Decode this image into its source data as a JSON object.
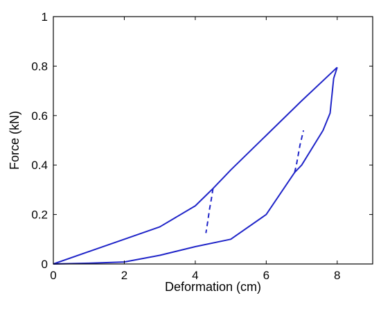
{
  "chart_data": {
    "type": "line",
    "title": "",
    "xlabel": "Deformation (cm)",
    "ylabel": "Force (kN)",
    "xlim": [
      0,
      9
    ],
    "ylim": [
      0,
      1
    ],
    "xticks": [
      0,
      2,
      4,
      6,
      8
    ],
    "yticks": [
      0,
      0.2,
      0.4,
      0.6,
      0.8,
      1
    ],
    "xtick_labels": [
      "0",
      "2",
      "4",
      "6",
      "8"
    ],
    "ytick_labels": [
      "0",
      "0.2",
      "0.4",
      "0.6",
      "0.8",
      "1"
    ],
    "grid": false,
    "line_color": "#1f24c8",
    "series": [
      {
        "style": "solid",
        "x": [
          0,
          2,
          3,
          4,
          4.5,
          5,
          6,
          7,
          8
        ],
        "y": [
          0,
          0.1,
          0.15,
          0.235,
          0.305,
          0.38,
          0.52,
          0.66,
          0.795
        ]
      },
      {
        "style": "solid",
        "x": [
          0,
          1,
          2,
          3,
          4,
          5,
          6,
          6.8,
          7,
          7.6,
          7.8,
          7.9,
          8
        ],
        "y": [
          0,
          0.003,
          0.008,
          0.035,
          0.07,
          0.1,
          0.2,
          0.37,
          0.4,
          0.54,
          0.61,
          0.75,
          0.795
        ]
      },
      {
        "style": "dashed",
        "x": [
          4.5,
          4.45,
          4.4,
          4.35,
          4.3
        ],
        "y": [
          0.305,
          0.26,
          0.22,
          0.17,
          0.125
        ]
      },
      {
        "style": "dashed",
        "x": [
          6.8,
          6.85,
          6.9,
          6.95,
          7.0,
          7.05
        ],
        "y": [
          0.37,
          0.4,
          0.44,
          0.48,
          0.51,
          0.54
        ]
      }
    ]
  }
}
